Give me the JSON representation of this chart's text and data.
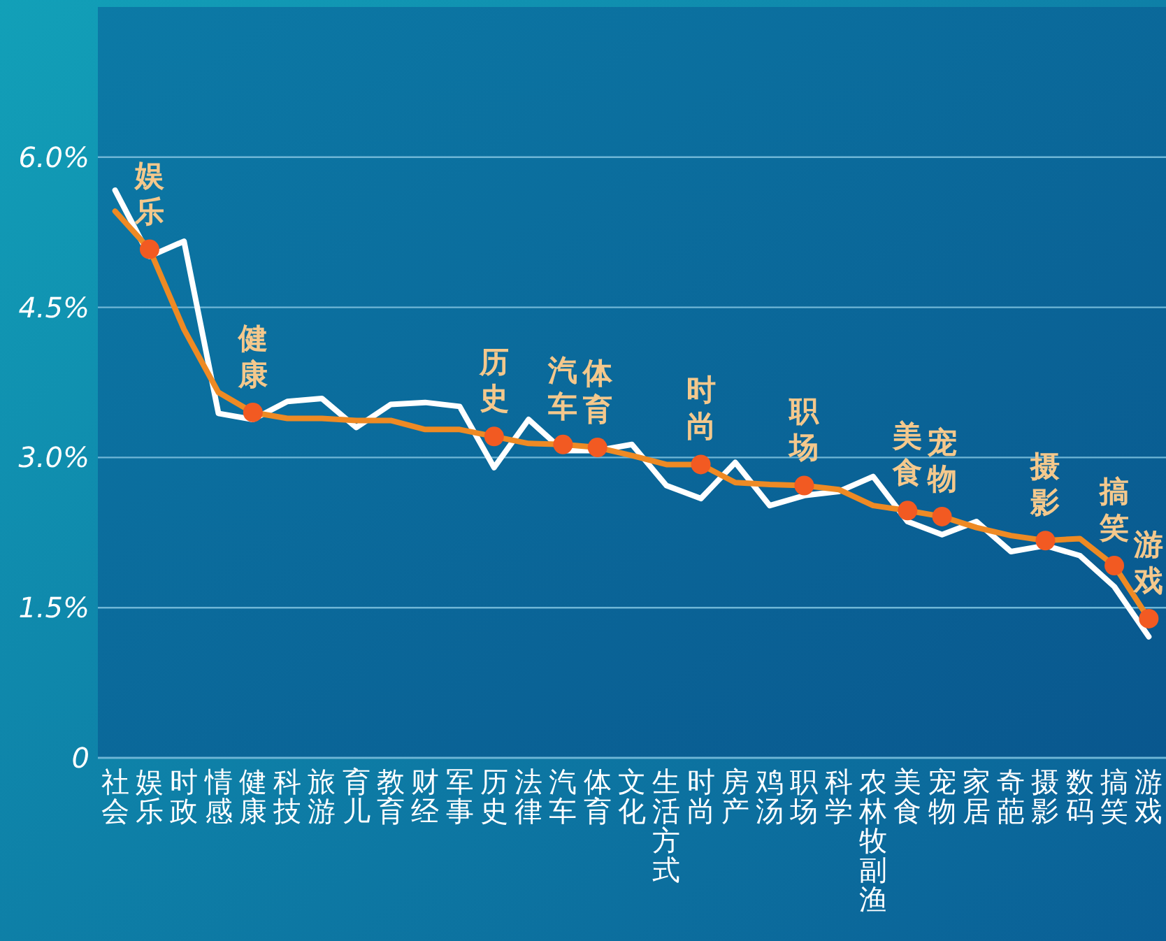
{
  "chart_data": {
    "type": "line",
    "categories": [
      "社会",
      "娱乐",
      "时政",
      "情感",
      "健康",
      "科技",
      "旅游",
      "育儿",
      "教育",
      "财经",
      "军事",
      "历史",
      "法律",
      "汽车",
      "体育",
      "文化",
      "生活方式",
      "时尚",
      "房产",
      "鸡汤",
      "职场",
      "科学",
      "农林牧副渔",
      "美食",
      "宠物",
      "家居",
      "奇葩",
      "摄影",
      "数码",
      "搞笑",
      "游戏"
    ],
    "series": [
      {
        "color": "#ffffff",
        "values": [
          5.67,
          5.01,
          5.16,
          3.44,
          3.38,
          3.56,
          3.59,
          3.3,
          3.53,
          3.55,
          3.51,
          2.9,
          3.38,
          3.07,
          3.07,
          3.13,
          2.72,
          2.59,
          2.95,
          2.52,
          2.62,
          2.66,
          2.81,
          2.36,
          2.23,
          2.36,
          2.06,
          2.12,
          2.02,
          1.71,
          1.21
        ]
      },
      {
        "color": "#ee8a24",
        "values": [
          5.46,
          5.08,
          4.28,
          3.65,
          3.45,
          3.39,
          3.39,
          3.37,
          3.37,
          3.28,
          3.28,
          3.21,
          3.14,
          3.13,
          3.1,
          3.02,
          2.93,
          2.93,
          2.75,
          2.73,
          2.72,
          2.68,
          2.52,
          2.47,
          2.41,
          2.3,
          2.22,
          2.17,
          2.19,
          1.92,
          1.39
        ]
      },
      {
        "type": "scatter",
        "marker": "circle",
        "color": "#f25a22",
        "values": [
          null,
          5.08,
          null,
          null,
          3.45,
          null,
          null,
          null,
          null,
          null,
          null,
          3.21,
          null,
          3.13,
          3.1,
          null,
          null,
          2.93,
          null,
          null,
          2.72,
          null,
          null,
          2.47,
          2.41,
          null,
          null,
          2.17,
          null,
          1.92,
          1.39
        ]
      }
    ],
    "ylim": [
      0,
      7.5
    ],
    "yticks": [
      {
        "value": 0,
        "label": "0"
      },
      {
        "value": 1.5,
        "label": "1.5%"
      },
      {
        "value": 3,
        "label": "3.0%"
      },
      {
        "value": 4.5,
        "label": "4.5%"
      },
      {
        "value": 6,
        "label": "6.0%"
      }
    ],
    "grid": "y",
    "line_style": "solid",
    "annotations": [
      {
        "text": "娱乐",
        "x": "娱乐",
        "y": 5.08
      },
      {
        "text": "健康",
        "x": "健康",
        "y": 3.45
      },
      {
        "text": "历史",
        "x": "历史",
        "y": 3.21
      },
      {
        "text": "汽车",
        "x": "汽车",
        "y": 3.13
      },
      {
        "text": "体育",
        "x": "体育",
        "y": 3.1
      },
      {
        "text": "时尚",
        "x": "时尚",
        "y": 2.93
      },
      {
        "text": "职场",
        "x": "职场",
        "y": 2.72
      },
      {
        "text": "美食",
        "x": "美食",
        "y": 2.47
      },
      {
        "text": "宠物",
        "x": "宠物",
        "y": 2.41
      },
      {
        "text": "摄影",
        "x": "摄影",
        "y": 2.17
      },
      {
        "text": "搞笑",
        "x": "搞笑",
        "y": 1.92
      },
      {
        "text": "游戏",
        "x": "游戏",
        "y": 1.39
      }
    ]
  }
}
